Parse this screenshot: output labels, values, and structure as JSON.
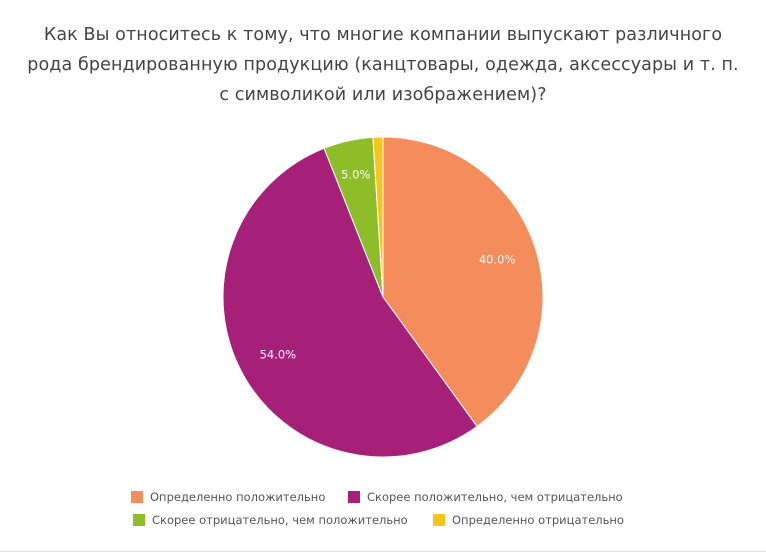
{
  "chart_data": {
    "type": "pie",
    "title_lines": [
      "Как Вы относитесь к тому, что многие компании выпускают различного",
      "рода брендированную продукцию (канцтовары, одежда, аксессуары и т. п.",
      "с символикой или изображением)?"
    ],
    "slices": [
      {
        "name": "Определенно положительно",
        "value": 40.0,
        "label": "40.0%",
        "color": "#f58c5c"
      },
      {
        "name": "Скорее положительно, чем отрицательно",
        "value": 54.0,
        "label": "54.0%",
        "color": "#a61f78"
      },
      {
        "name": "Скорее отрицательно, чем положительно",
        "value": 5.0,
        "label": "5.0%",
        "color": "#8ebd2a"
      },
      {
        "name": "Определенно отрицательно",
        "value": 1.0,
        "label": "",
        "color": "#f5c51e"
      }
    ],
    "legend_position": "bottom"
  }
}
